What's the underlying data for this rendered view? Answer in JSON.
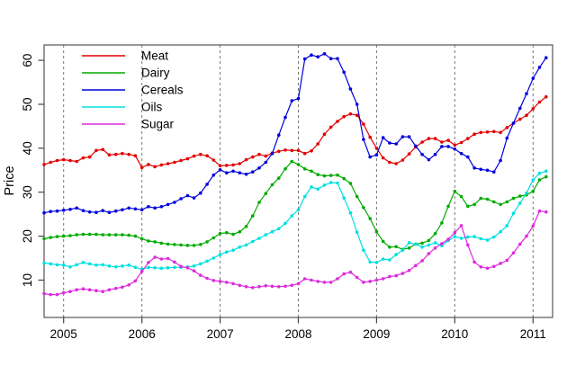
{
  "chart_data": {
    "type": "line",
    "title": "",
    "xlabel": "",
    "ylabel": "Price",
    "xlim": [
      2004.75,
      2011.25
    ],
    "ylim": [
      1.5,
      63.5
    ],
    "y_ticks": [
      10,
      20,
      30,
      40,
      50,
      60
    ],
    "x_ticks": [
      2005,
      2006,
      2007,
      2008,
      2009,
      2010,
      2011
    ],
    "grid": {
      "style": "dashed-vertical",
      "color": "#777777",
      "at_years": [
        2005,
        2006,
        2007,
        2008,
        2009,
        2010,
        2011
      ]
    },
    "legend": {
      "position": "topleft",
      "entries": [
        "Meat",
        "Dairy",
        "Cereals",
        "Oils",
        "Sugar"
      ]
    },
    "x": [
      "2004-10",
      "2004-11",
      "2004-12",
      "2005-01",
      "2005-02",
      "2005-03",
      "2005-04",
      "2005-05",
      "2005-06",
      "2005-07",
      "2005-08",
      "2005-09",
      "2005-10",
      "2005-11",
      "2005-12",
      "2006-01",
      "2006-02",
      "2006-03",
      "2006-04",
      "2006-05",
      "2006-06",
      "2006-07",
      "2006-08",
      "2006-09",
      "2006-10",
      "2006-11",
      "2006-12",
      "2007-01",
      "2007-02",
      "2007-03",
      "2007-04",
      "2007-05",
      "2007-06",
      "2007-07",
      "2007-08",
      "2007-09",
      "2007-10",
      "2007-11",
      "2007-12",
      "2008-01",
      "2008-02",
      "2008-03",
      "2008-04",
      "2008-05",
      "2008-06",
      "2008-07",
      "2008-08",
      "2008-09",
      "2008-10",
      "2008-11",
      "2008-12",
      "2009-01",
      "2009-02",
      "2009-03",
      "2009-04",
      "2009-05",
      "2009-06",
      "2009-07",
      "2009-08",
      "2009-09",
      "2009-10",
      "2009-11",
      "2009-12",
      "2010-01",
      "2010-02",
      "2010-03",
      "2010-04",
      "2010-05",
      "2010-06",
      "2010-07",
      "2010-08",
      "2010-09",
      "2010-10",
      "2010-11",
      "2010-12",
      "2011-01",
      "2011-02",
      "2011-03"
    ],
    "series": [
      {
        "name": "Meat",
        "color": "#e10000",
        "values": [
          36.3,
          36.8,
          37.2,
          37.4,
          37.2,
          37.0,
          37.8,
          38.0,
          39.5,
          39.7,
          38.5,
          38.6,
          38.8,
          38.6,
          38.3,
          35.6,
          36.3,
          35.8,
          36.2,
          36.5,
          36.8,
          37.2,
          37.6,
          38.2,
          38.6,
          38.3,
          37.3,
          36.0,
          36.1,
          36.2,
          36.5,
          37.4,
          38.0,
          38.6,
          38.2,
          38.9,
          39.3,
          39.6,
          39.5,
          39.5,
          38.8,
          39.4,
          41.0,
          43.2,
          44.8,
          46.1,
          47.2,
          47.8,
          47.5,
          45.5,
          42.5,
          40.0,
          37.8,
          36.8,
          36.5,
          37.3,
          38.7,
          40.3,
          41.4,
          42.2,
          42.2,
          41.4,
          41.8,
          40.7,
          41.3,
          42.2,
          43.2,
          43.6,
          43.7,
          43.8,
          43.6,
          44.7,
          45.7,
          46.6,
          47.5,
          49.0,
          50.5,
          51.7
        ]
      },
      {
        "name": "Dairy",
        "color": "#00ab00",
        "values": [
          19.4,
          19.7,
          19.9,
          20.0,
          20.1,
          20.3,
          20.4,
          20.4,
          20.4,
          20.3,
          20.3,
          20.3,
          20.3,
          20.2,
          20.0,
          19.4,
          18.9,
          18.7,
          18.4,
          18.2,
          18.1,
          18.0,
          17.9,
          17.9,
          18.1,
          18.7,
          19.6,
          20.6,
          20.8,
          20.4,
          21.0,
          22.2,
          24.6,
          27.7,
          29.7,
          31.7,
          33.2,
          35.3,
          37.0,
          36.3,
          35.3,
          34.8,
          34.0,
          33.7,
          33.8,
          33.9,
          33.1,
          32.0,
          29.0,
          26.5,
          24.0,
          21.0,
          18.8,
          17.5,
          17.6,
          17.0,
          17.3,
          18.2,
          18.4,
          19.0,
          20.6,
          23.0,
          26.8,
          30.2,
          29.0,
          26.8,
          27.2,
          28.6,
          28.4,
          27.8,
          27.2,
          27.8,
          28.6,
          29.1,
          29.4,
          30.2,
          32.8,
          33.5
        ]
      },
      {
        "name": "Cereals",
        "color": "#0000dd",
        "values": [
          25.3,
          25.6,
          25.7,
          25.9,
          26.1,
          26.4,
          25.8,
          25.5,
          25.4,
          25.8,
          25.4,
          25.7,
          26.0,
          26.4,
          26.2,
          26.0,
          26.7,
          26.4,
          26.7,
          27.2,
          27.7,
          28.5,
          29.2,
          28.7,
          29.8,
          31.8,
          33.9,
          35.1,
          34.4,
          34.8,
          34.4,
          34.1,
          34.6,
          35.5,
          36.8,
          38.8,
          43.0,
          47.0,
          50.8,
          51.3,
          60.3,
          61.2,
          60.8,
          61.5,
          60.4,
          60.4,
          57.3,
          53.5,
          50.0,
          42.0,
          38.0,
          38.5,
          42.4,
          41.2,
          41.0,
          42.6,
          42.6,
          40.5,
          38.6,
          37.4,
          38.6,
          40.4,
          40.4,
          39.8,
          38.8,
          38.0,
          35.5,
          35.2,
          35.0,
          34.6,
          37.2,
          42.3,
          45.7,
          49.1,
          52.4,
          55.9,
          58.4,
          60.6
        ]
      },
      {
        "name": "Oils",
        "color": "#00e0e0",
        "values": [
          13.9,
          13.7,
          13.5,
          13.4,
          13.0,
          13.5,
          14.0,
          13.7,
          13.4,
          13.5,
          13.2,
          13.0,
          13.2,
          13.4,
          12.9,
          12.5,
          12.9,
          12.8,
          12.7,
          12.8,
          12.9,
          12.9,
          13.0,
          13.2,
          13.7,
          14.3,
          15.0,
          15.8,
          16.4,
          16.8,
          17.5,
          18.0,
          18.8,
          19.5,
          20.3,
          21.0,
          21.7,
          22.9,
          24.6,
          26.0,
          29.0,
          31.2,
          30.7,
          31.6,
          32.2,
          32.1,
          28.7,
          25.3,
          20.9,
          16.8,
          14.1,
          14.0,
          14.8,
          14.6,
          15.8,
          16.8,
          18.5,
          18.2,
          17.5,
          18.0,
          18.5,
          17.8,
          19.0,
          19.9,
          19.5,
          19.8,
          19.9,
          19.4,
          19.1,
          19.8,
          21.0,
          22.4,
          25.2,
          27.5,
          29.8,
          32.8,
          34.3,
          34.8
        ]
      },
      {
        "name": "Sugar",
        "color": "#dd2add",
        "values": [
          6.9,
          6.7,
          6.7,
          7.1,
          7.4,
          7.8,
          8.0,
          7.8,
          7.6,
          7.4,
          7.8,
          8.1,
          8.4,
          8.9,
          9.8,
          12.0,
          14.0,
          15.2,
          14.8,
          14.9,
          14.1,
          13.1,
          12.8,
          12.1,
          11.1,
          10.4,
          9.9,
          9.7,
          9.5,
          9.2,
          8.8,
          8.5,
          8.3,
          8.5,
          8.7,
          8.6,
          8.5,
          8.6,
          8.8,
          9.2,
          10.3,
          10.0,
          9.7,
          9.5,
          9.5,
          10.3,
          11.4,
          11.8,
          10.6,
          9.5,
          9.7,
          10.0,
          10.3,
          10.8,
          11.0,
          11.5,
          12.2,
          13.3,
          14.4,
          16.0,
          17.3,
          18.3,
          19.3,
          20.8,
          22.4,
          18.0,
          14.1,
          13.0,
          12.7,
          13.1,
          13.8,
          14.5,
          16.2,
          18.2,
          20.0,
          22.3,
          25.7,
          25.5
        ]
      }
    ]
  },
  "figure": {
    "background": "#ffffff",
    "border_color": "#555555",
    "tick_color": "#444444",
    "text_color": "#000000"
  }
}
